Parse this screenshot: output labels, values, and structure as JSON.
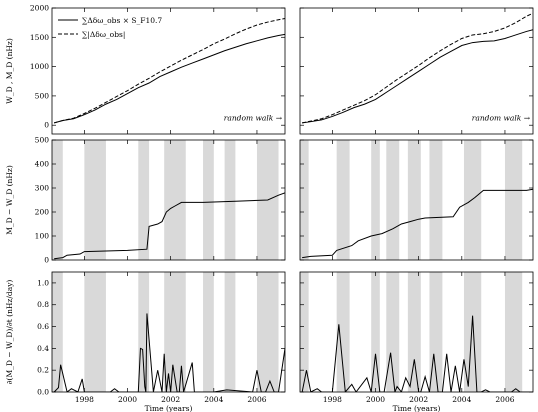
{
  "chart_data": [
    {
      "type": "line",
      "panel": "top-left",
      "ylabel": "W_D , M_D (nHz)",
      "xlim": [
        1996.5,
        2007.3
      ],
      "ylim": [
        -150,
        2000
      ],
      "yticks": [
        0,
        500,
        1000,
        1500,
        2000
      ],
      "legend": {
        "placement": "top-left",
        "entries": [
          {
            "label": "∑Δδω_obs × S_F10.7",
            "style": "solid"
          },
          {
            "label": "∑|Δδω_obs|",
            "style": "dashed"
          }
        ]
      },
      "annotation": "random walk →",
      "series": [
        {
          "style": "solid",
          "x": [
            1996.6,
            1997.0,
            1997.5,
            1998.0,
            1998.5,
            1999.0,
            1999.5,
            2000.0,
            2000.5,
            2001.0,
            2001.5,
            2002.0,
            2002.5,
            2003.0,
            2003.5,
            2004.0,
            2004.5,
            2005.0,
            2005.5,
            2006.0,
            2006.5,
            2007.0,
            2007.3
          ],
          "y": [
            40,
            80,
            110,
            180,
            260,
            360,
            440,
            540,
            640,
            720,
            830,
            910,
            990,
            1060,
            1130,
            1200,
            1270,
            1330,
            1390,
            1440,
            1490,
            1530,
            1550
          ]
        },
        {
          "style": "dashed",
          "x": [
            1996.6,
            1997.0,
            1997.5,
            1998.0,
            1998.5,
            1999.0,
            1999.5,
            2000.0,
            2000.5,
            2001.0,
            2001.5,
            2002.0,
            2002.5,
            2003.0,
            2003.5,
            2004.0,
            2004.5,
            2005.0,
            2005.5,
            2006.0,
            2006.5,
            2007.0,
            2007.3
          ],
          "y": [
            40,
            80,
            120,
            200,
            290,
            390,
            490,
            590,
            700,
            800,
            910,
            1010,
            1110,
            1200,
            1290,
            1390,
            1470,
            1560,
            1640,
            1710,
            1760,
            1800,
            1820
          ]
        }
      ]
    },
    {
      "type": "line",
      "panel": "top-right",
      "xlim": [
        1996.5,
        2007.3
      ],
      "ylim": [
        -150,
        2000
      ],
      "annotation": "random walk →",
      "series": [
        {
          "style": "solid",
          "x": [
            1996.6,
            1997.0,
            1997.5,
            1998.0,
            1998.5,
            1999.0,
            1999.5,
            2000.0,
            2000.5,
            2001.0,
            2001.5,
            2002.0,
            2002.5,
            2003.0,
            2003.5,
            2004.0,
            2004.5,
            2005.0,
            2005.5,
            2006.0,
            2006.5,
            2007.0,
            2007.3
          ],
          "y": [
            40,
            60,
            90,
            150,
            220,
            300,
            360,
            440,
            560,
            680,
            800,
            920,
            1040,
            1160,
            1260,
            1360,
            1410,
            1430,
            1440,
            1480,
            1540,
            1600,
            1630
          ]
        },
        {
          "style": "dashed",
          "x": [
            1996.6,
            1997.0,
            1997.5,
            1998.0,
            1998.5,
            1999.0,
            1999.5,
            2000.0,
            2000.5,
            2001.0,
            2001.5,
            2002.0,
            2002.5,
            2003.0,
            2003.5,
            2004.0,
            2004.5,
            2005.0,
            2005.5,
            2006.0,
            2006.5,
            2007.0,
            2007.3
          ],
          "y": [
            40,
            70,
            110,
            180,
            260,
            340,
            420,
            520,
            650,
            780,
            900,
            1020,
            1150,
            1270,
            1380,
            1480,
            1540,
            1560,
            1600,
            1660,
            1750,
            1860,
            1910
          ]
        }
      ]
    },
    {
      "type": "line",
      "panel": "middle-left",
      "ylabel": "M_D − W_D (nHz)",
      "xlim": [
        1996.5,
        2007.3
      ],
      "ylim": [
        0,
        500
      ],
      "yticks": [
        0,
        100,
        200,
        300,
        400,
        500
      ],
      "shaded_intervals": [
        [
          1996.5,
          1997.0
        ],
        [
          1998.0,
          1999.0
        ],
        [
          2000.5,
          2001.0
        ],
        [
          2001.7,
          2002.7
        ],
        [
          2003.5,
          2004.0
        ],
        [
          2004.5,
          2005.0
        ],
        [
          2006.0,
          2007.0
        ]
      ],
      "series": [
        {
          "style": "solid",
          "x": [
            1996.6,
            1997.0,
            1997.2,
            1997.8,
            1998.0,
            2000.0,
            2000.9,
            2001.0,
            2001.4,
            2001.6,
            2001.8,
            2002.0,
            2002.2,
            2002.5,
            2003.5,
            2005.0,
            2006.5,
            2007.0,
            2007.3
          ],
          "y": [
            5,
            10,
            20,
            25,
            35,
            40,
            45,
            140,
            150,
            160,
            200,
            215,
            225,
            240,
            240,
            245,
            250,
            270,
            280
          ]
        }
      ]
    },
    {
      "type": "line",
      "panel": "middle-right",
      "xlim": [
        1996.5,
        2007.3
      ],
      "ylim": [
        0,
        500
      ],
      "shaded_intervals": [
        [
          1996.5,
          1996.9
        ],
        [
          1998.2,
          1998.8
        ],
        [
          1999.8,
          2000.2
        ],
        [
          2000.5,
          2001.1
        ],
        [
          2001.5,
          2002.1
        ],
        [
          2002.5,
          2003.1
        ],
        [
          2004.1,
          2004.9
        ],
        [
          2006.0,
          2006.8
        ]
      ],
      "series": [
        {
          "style": "solid",
          "x": [
            1996.6,
            1997.0,
            1998.0,
            1998.2,
            1998.9,
            1999.2,
            1999.8,
            2000.3,
            2000.8,
            2001.2,
            2001.6,
            2002.0,
            2002.3,
            2003.6,
            2003.9,
            2004.3,
            2004.6,
            2005.0,
            2007.0,
            2007.3
          ],
          "y": [
            10,
            15,
            20,
            40,
            60,
            80,
            100,
            110,
            130,
            150,
            160,
            170,
            175,
            180,
            220,
            240,
            260,
            290,
            290,
            295
          ]
        }
      ]
    },
    {
      "type": "line",
      "panel": "bottom-left",
      "xlabel": "Time (years)",
      "ylabel": "∂(M_D − W_D)/∂t (nHz/day)",
      "xlim": [
        1996.5,
        2007.3
      ],
      "ylim": [
        0,
        1.1
      ],
      "yticks": [
        0.0,
        0.2,
        0.4,
        0.6,
        0.8,
        1.0
      ],
      "xticks": [
        1998,
        2000,
        2002,
        2004,
        2006
      ],
      "shaded_intervals": [
        [
          1996.5,
          1997.0
        ],
        [
          1998.0,
          1999.0
        ],
        [
          2000.5,
          2001.0
        ],
        [
          2001.7,
          2002.7
        ],
        [
          2003.5,
          2004.0
        ],
        [
          2004.5,
          2005.0
        ],
        [
          2006.0,
          2007.0
        ]
      ],
      "series": [
        {
          "style": "solid",
          "x": [
            1996.6,
            1996.8,
            1996.9,
            1997.2,
            1997.4,
            1997.7,
            1997.9,
            1998.0,
            1998.2,
            1998.6,
            1999.2,
            1999.4,
            1999.6,
            2000.5,
            2000.6,
            2000.7,
            2000.8,
            2000.85,
            2000.9,
            2001.2,
            2001.4,
            2001.6,
            2001.7,
            2001.8,
            2001.9,
            2002.0,
            2002.1,
            2002.3,
            2002.4,
            2002.5,
            2002.6,
            2003.0,
            2003.1,
            2003.4,
            2004.0,
            2004.6,
            2005.8,
            2006.0,
            2006.2,
            2006.4,
            2006.6,
            2006.8,
            2007.0,
            2007.3
          ],
          "y": [
            0,
            0.04,
            0.25,
            0,
            0.03,
            0,
            0.12,
            0,
            0,
            0,
            0,
            0.03,
            0,
            0,
            0.4,
            0.39,
            0.05,
            0,
            0.72,
            0,
            0.2,
            0,
            0.35,
            0,
            0.17,
            0,
            0.25,
            0,
            0,
            0.24,
            0,
            0.27,
            0,
            0,
            0,
            0.02,
            0,
            0.2,
            0,
            0,
            0.1,
            0,
            0,
            0.4
          ]
        }
      ]
    },
    {
      "type": "line",
      "panel": "bottom-right",
      "xlabel": "Time (years)",
      "xlim": [
        1996.5,
        2007.3
      ],
      "ylim": [
        0,
        1.1
      ],
      "xticks": [
        1998,
        2000,
        2002,
        2004,
        2006
      ],
      "shaded_intervals": [
        [
          1996.5,
          1996.9
        ],
        [
          1998.2,
          1998.8
        ],
        [
          1999.8,
          2000.2
        ],
        [
          2000.5,
          2001.1
        ],
        [
          2001.5,
          2002.1
        ],
        [
          2002.5,
          2003.1
        ],
        [
          2004.1,
          2004.9
        ],
        [
          2006.0,
          2006.8
        ]
      ],
      "series": [
        {
          "style": "solid",
          "x": [
            1996.6,
            1996.8,
            1997.0,
            1997.3,
            1997.5,
            1998.0,
            1998.3,
            1998.6,
            1998.9,
            1999.1,
            1999.6,
            1999.8,
            2000.0,
            2000.2,
            2000.4,
            2000.7,
            2000.9,
            2001.0,
            2001.2,
            2001.4,
            2001.6,
            2001.8,
            2002.0,
            2002.1,
            2002.3,
            2002.5,
            2002.7,
            2002.9,
            2003.1,
            2003.3,
            2003.5,
            2003.7,
            2003.9,
            2004.1,
            2004.3,
            2004.5,
            2004.7,
            2004.9,
            2005.1,
            2005.3,
            2005.6,
            2006.3,
            2006.5,
            2006.7,
            2007.0,
            2007.3
          ],
          "y": [
            0,
            0.2,
            0,
            0.03,
            0,
            0,
            0.62,
            0,
            0.07,
            0,
            0.13,
            0,
            0.35,
            0,
            0,
            0.36,
            0,
            0.05,
            0,
            0.13,
            0.05,
            0.3,
            0,
            0,
            0.14,
            0,
            0.35,
            0,
            0,
            0.35,
            0,
            0.24,
            0,
            0.3,
            0.05,
            0.7,
            0,
            0,
            0.02,
            0,
            0,
            0,
            0.03,
            0,
            0,
            0
          ]
        }
      ]
    }
  ]
}
